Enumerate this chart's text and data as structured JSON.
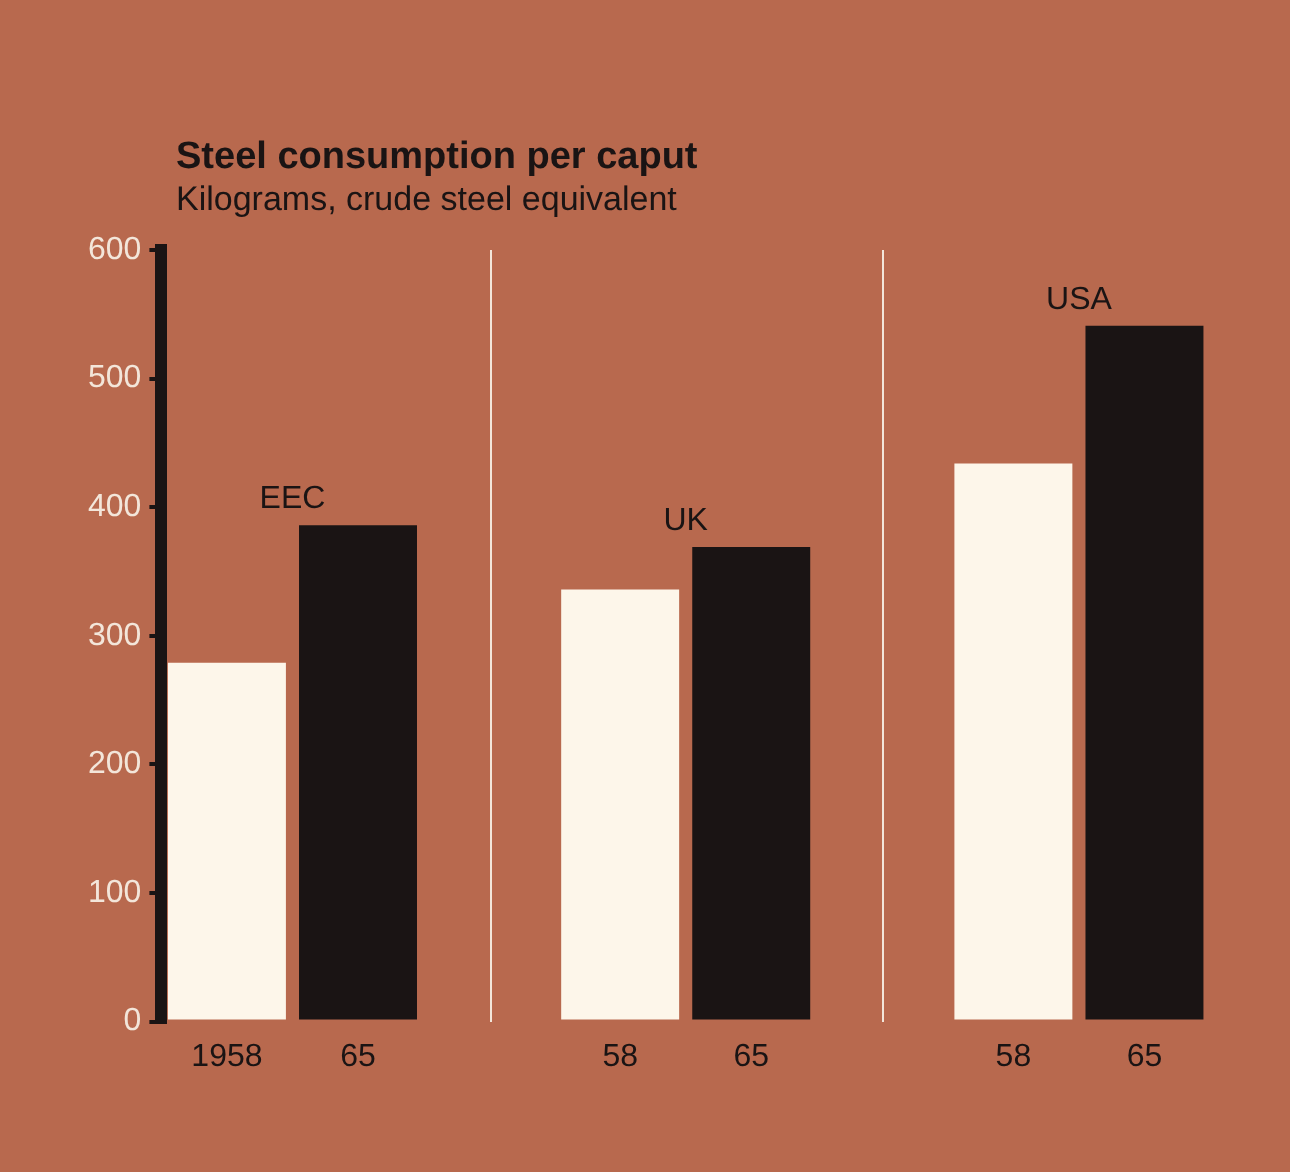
{
  "chart_data": {
    "type": "bar",
    "title": "Steel consumption per caput",
    "subtitle": "Kilograms, crude steel equivalent",
    "categories": [
      "1958",
      "65",
      null,
      "58",
      "65",
      null,
      "58",
      "65"
    ],
    "values": [
      279,
      386,
      null,
      336,
      369,
      null,
      434,
      541
    ],
    "colors": [
      "#fdf6ea",
      "#1a1414",
      "#1a1414",
      "#fdf6ea",
      "#1a1414",
      "#1a1414",
      "#fdf6ea",
      "#1a1414"
    ],
    "annotations": [
      "EEC",
      "UK",
      "USA"
    ],
    "ylim": [
      0,
      600
    ],
    "yticks": [
      0,
      100,
      200,
      300,
      400,
      500,
      600
    ],
    "grid": false,
    "legend": false
  }
}
